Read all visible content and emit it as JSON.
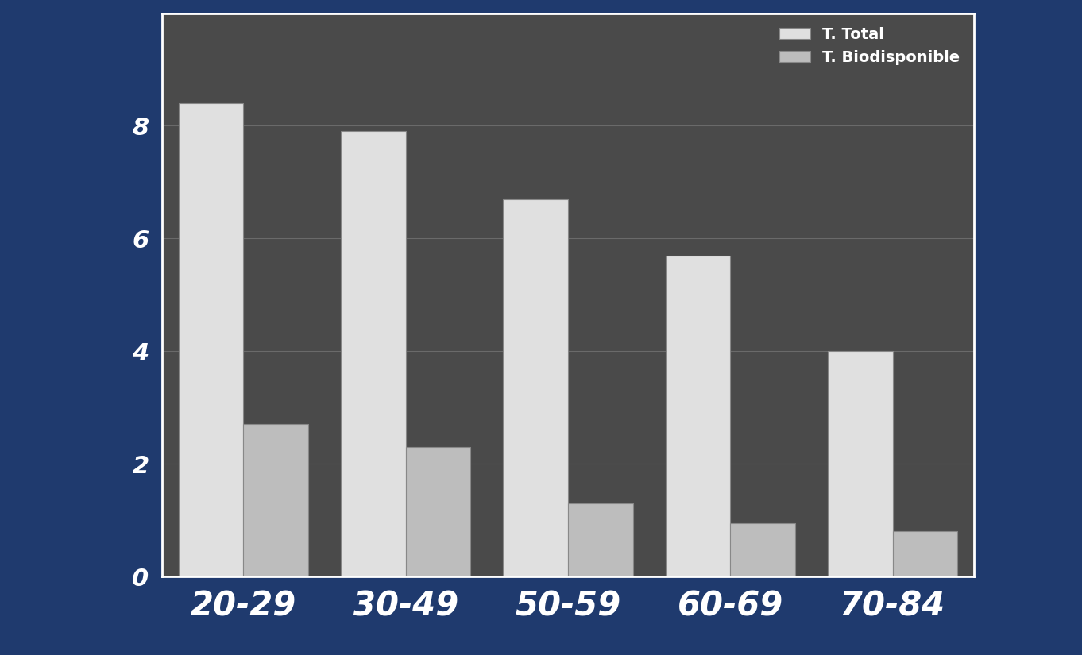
{
  "chart_data": {
    "type": "bar",
    "categories": [
      "20-29",
      "30-49",
      "50-59",
      "60-69",
      "70-84"
    ],
    "series": [
      {
        "name": "T. Total",
        "color": "#e0e0e0",
        "values": [
          8.4,
          7.9,
          6.7,
          5.7,
          4.0
        ]
      },
      {
        "name": "T. Biodisponible",
        "color": "#bdbdbd",
        "values": [
          2.7,
          2.3,
          1.3,
          0.95,
          0.8
        ]
      }
    ],
    "ylim": [
      0,
      10
    ],
    "yticks": [
      0,
      2,
      4,
      6,
      8
    ],
    "grid": true,
    "legend": "upper right"
  }
}
